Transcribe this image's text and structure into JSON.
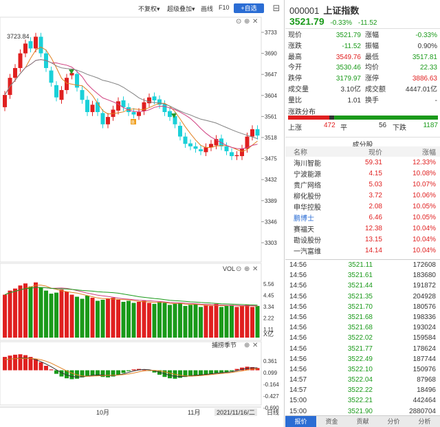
{
  "toolbar": {
    "fuquan": "不复权",
    "overlay": "超级叠加",
    "draw": "画线",
    "f10": "F10",
    "add": "+自选",
    "collapse": "⊟"
  },
  "kline": {
    "ticks": [
      "3733",
      "3690",
      "3647",
      "3604",
      "3561",
      "3518",
      "3475",
      "3432",
      "3389",
      "3346",
      "3303"
    ],
    "max_label": "3723.84",
    "markers": [
      "B",
      "S"
    ]
  },
  "vol": {
    "label": "VOL",
    "ticks": [
      "5.56",
      "4.45",
      "3.34",
      "2.22",
      "1.11"
    ],
    "unit": "X亿"
  },
  "macd": {
    "label": "捕捞季节",
    "ticks": [
      "0.361",
      "0.099",
      "-0.164",
      "-0.427",
      "-0.690"
    ]
  },
  "xaxis": {
    "labels": [
      "10月",
      "11月"
    ],
    "current_date": "2021/11/16/二",
    "period": "日线"
  },
  "colors": {
    "up": "#e02020",
    "down": "#1ad0d8",
    "green": "#1a9a1a",
    "accent": "#2b6dd4"
  },
  "icon_names": [
    "settings-icon",
    "add-icon",
    "close-icon",
    "scroll-down-icon"
  ],
  "quote": {
    "code": "000001",
    "name": "上证指数",
    "price": "3521.79",
    "pct": "-0.33%",
    "chg": "-11.52",
    "fields": [
      {
        "k": "现价",
        "v": "3521.79",
        "c": "green",
        "k2": "涨幅",
        "v2": "-0.33%",
        "c2": "green"
      },
      {
        "k": "涨跌",
        "v": "-11.52",
        "c": "green",
        "k2": "振幅",
        "v2": "0.90%",
        "c2": "black"
      },
      {
        "k": "最高",
        "v": "3549.76",
        "c": "red",
        "k2": "最低",
        "v2": "3517.81",
        "c2": "green"
      },
      {
        "k": "今开",
        "v": "3530.46",
        "c": "green",
        "k2": "均价",
        "v2": "22.33",
        "c2": "green"
      },
      {
        "k": "跌停",
        "v": "3179.97",
        "c": "green",
        "k2": "涨停",
        "v2": "3886.63",
        "c2": "red"
      },
      {
        "k": "成交量",
        "v": "3.10亿",
        "c": "black",
        "k2": "成交额",
        "v2": "4447.01亿",
        "c2": "black"
      },
      {
        "k": "量比",
        "v": "1.01",
        "c": "black",
        "k2": "换手",
        "v2": "-",
        "c2": "black"
      }
    ]
  },
  "distribution": {
    "title": "涨跌分布",
    "up_label": "上涨",
    "up": "472",
    "flat_label": "平",
    "flat": "56",
    "down_label": "下跌",
    "down": "1187",
    "up_n": 472,
    "flat_n": 56,
    "down_n": 1187
  },
  "constituents": {
    "title": "成分股",
    "headers": [
      "名称",
      "现价",
      "涨幅"
    ],
    "rows": [
      {
        "name": "海川智能",
        "price": "59.31",
        "pct": "12.33%",
        "blue": false
      },
      {
        "name": "宁波能源",
        "price": "4.15",
        "pct": "10.08%",
        "blue": false
      },
      {
        "name": "贵广网络",
        "price": "5.03",
        "pct": "10.07%",
        "blue": false
      },
      {
        "name": "柳化股份",
        "price": "3.72",
        "pct": "10.06%",
        "blue": false
      },
      {
        "name": "申华控股",
        "price": "2.08",
        "pct": "10.05%",
        "blue": false
      },
      {
        "name": "鹏博士",
        "price": "6.46",
        "pct": "10.05%",
        "blue": true
      },
      {
        "name": "赛福天",
        "price": "12.38",
        "pct": "10.04%",
        "blue": false
      },
      {
        "name": "勘设股份",
        "price": "13.15",
        "pct": "10.04%",
        "blue": false
      },
      {
        "name": "一汽富维",
        "price": "14.14",
        "pct": "10.04%",
        "blue": false
      }
    ]
  },
  "ticks": [
    {
      "t": "14:56",
      "p": "3521.11",
      "v": "172608"
    },
    {
      "t": "14:56",
      "p": "3521.61",
      "v": "183680"
    },
    {
      "t": "14:56",
      "p": "3521.44",
      "v": "191872"
    },
    {
      "t": "14:56",
      "p": "3521.35",
      "v": "204928"
    },
    {
      "t": "14:56",
      "p": "3521.70",
      "v": "180576"
    },
    {
      "t": "14:56",
      "p": "3521.68",
      "v": "198336"
    },
    {
      "t": "14:56",
      "p": "3521.68",
      "v": "193024"
    },
    {
      "t": "14:56",
      "p": "3522.02",
      "v": "159584"
    },
    {
      "t": "14:56",
      "p": "3521.77",
      "v": "178624"
    },
    {
      "t": "14:56",
      "p": "3522.49",
      "v": "187744"
    },
    {
      "t": "14:56",
      "p": "3522.10",
      "v": "150976"
    },
    {
      "t": "14:57",
      "p": "3522.04",
      "v": "87968"
    },
    {
      "t": "14:57",
      "p": "3522.22",
      "v": "18496"
    },
    {
      "t": "15:00",
      "p": "3522.21",
      "v": "442464"
    },
    {
      "t": "15:00",
      "p": "3521.90",
      "v": "2880704"
    },
    {
      "t": "15:00",
      "p": "3521.79",
      "v": "257696"
    }
  ],
  "tabs": [
    "报价",
    "资金",
    "贡献",
    "分价",
    "分析"
  ]
}
